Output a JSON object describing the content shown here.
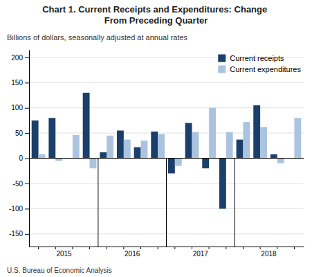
{
  "chart_data": {
    "type": "bar",
    "title": "Chart 1. Current Receipts and Expenditures: Change From Preceding Quarter",
    "subtitle": "Billions of dollars, seasonally adjusted at annual rates",
    "annotations": [
      "U.S. Bureau of Economic Analysis"
    ],
    "categories": [
      "2015",
      null,
      null,
      null,
      "2016",
      null,
      null,
      null,
      "2017",
      null,
      null,
      null,
      "2018",
      null,
      null,
      null
    ],
    "series": [
      {
        "name": "Current receipts",
        "color": "#1b3f6b",
        "values": [
          75,
          80,
          0,
          130,
          12,
          55,
          22,
          53,
          -30,
          70,
          -20,
          -100,
          37,
          105,
          8,
          0
        ]
      },
      {
        "name": "Current expenditures",
        "color": "#aac4e0",
        "values": [
          8,
          -5,
          46,
          -20,
          45,
          37,
          35,
          48,
          -15,
          52,
          100,
          52,
          72,
          62,
          -10,
          80
        ]
      }
    ],
    "ylim": [
      -175,
      215
    ],
    "yticks": [
      -150,
      -100,
      -50,
      0,
      50,
      100,
      150,
      200
    ],
    "grid": true,
    "legend": "upper right"
  }
}
